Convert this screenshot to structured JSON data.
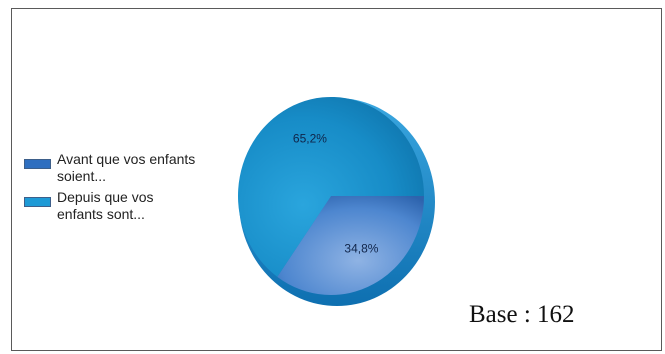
{
  "chart_data": {
    "type": "pie",
    "categories": [
      "Avant que vos enfants soient...",
      "Depuis que vos enfants sont..."
    ],
    "values": [
      34.8,
      65.2
    ],
    "value_labels": [
      "34,8%",
      "65,2%"
    ],
    "legend": {
      "placement": "left",
      "items": [
        {
          "label": "Avant que vos enfants\nsoient...",
          "color": "#2f6fc0"
        },
        {
          "label": "Depuis que vos\nenfants sont...",
          "color": "#1e9ad6"
        }
      ]
    },
    "colors": [
      "#2f6fc0",
      "#1e9ad6"
    ]
  },
  "footer": {
    "base_label": "Base : 162"
  }
}
